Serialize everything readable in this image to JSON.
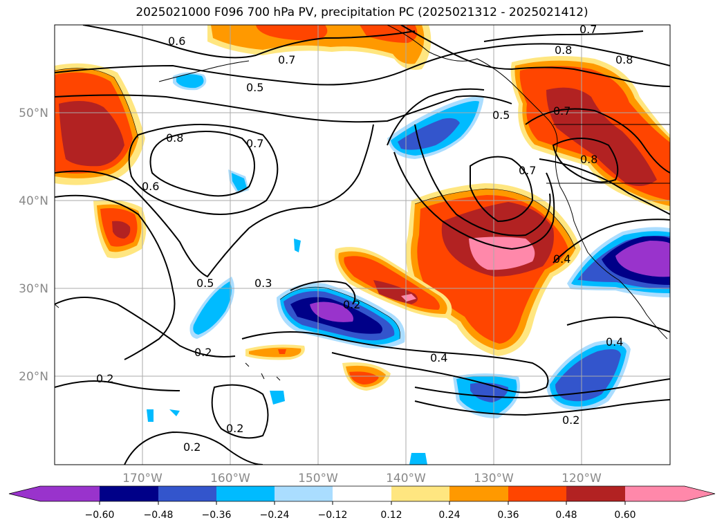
{
  "map": {
    "title": "2025021000 F096 700 hPa PV, precipitation PC (2025021312 - 2025021412)",
    "lat_labels": [
      "50°N",
      "40°N",
      "30°N",
      "20°N"
    ],
    "lon_labels": [
      "170°W",
      "160°W",
      "150°W",
      "140°W",
      "130°W",
      "120°W"
    ],
    "contour_labels": [
      "0.6",
      "0.7",
      "0.5",
      "0.8",
      "0.7",
      "0.6",
      "0.5",
      "0.3",
      "0.2",
      "0.2",
      "0.2",
      "0.2",
      "0.4",
      "0.4",
      "0.2",
      "0.4",
      "0.5",
      "0.7",
      "0.7",
      "0.8",
      "0.8",
      "0.7",
      "0.8",
      "0.2"
    ],
    "colors": {
      "purple": "#9933cc",
      "navy": "#000088",
      "royal_blue": "#3355cc",
      "deep_sky": "#00bbff",
      "light_blue": "#aaddff",
      "light_yellow": "#ffe680",
      "orange": "#ff9900",
      "red_orange": "#ff4500",
      "brick": "#b22222",
      "pink": "#ff88aa"
    }
  },
  "colorbar": {
    "ticks": [
      "−0.60",
      "−0.48",
      "−0.36",
      "−0.24",
      "−0.12",
      "0.12",
      "0.24",
      "0.36",
      "0.48",
      "0.60"
    ]
  }
}
